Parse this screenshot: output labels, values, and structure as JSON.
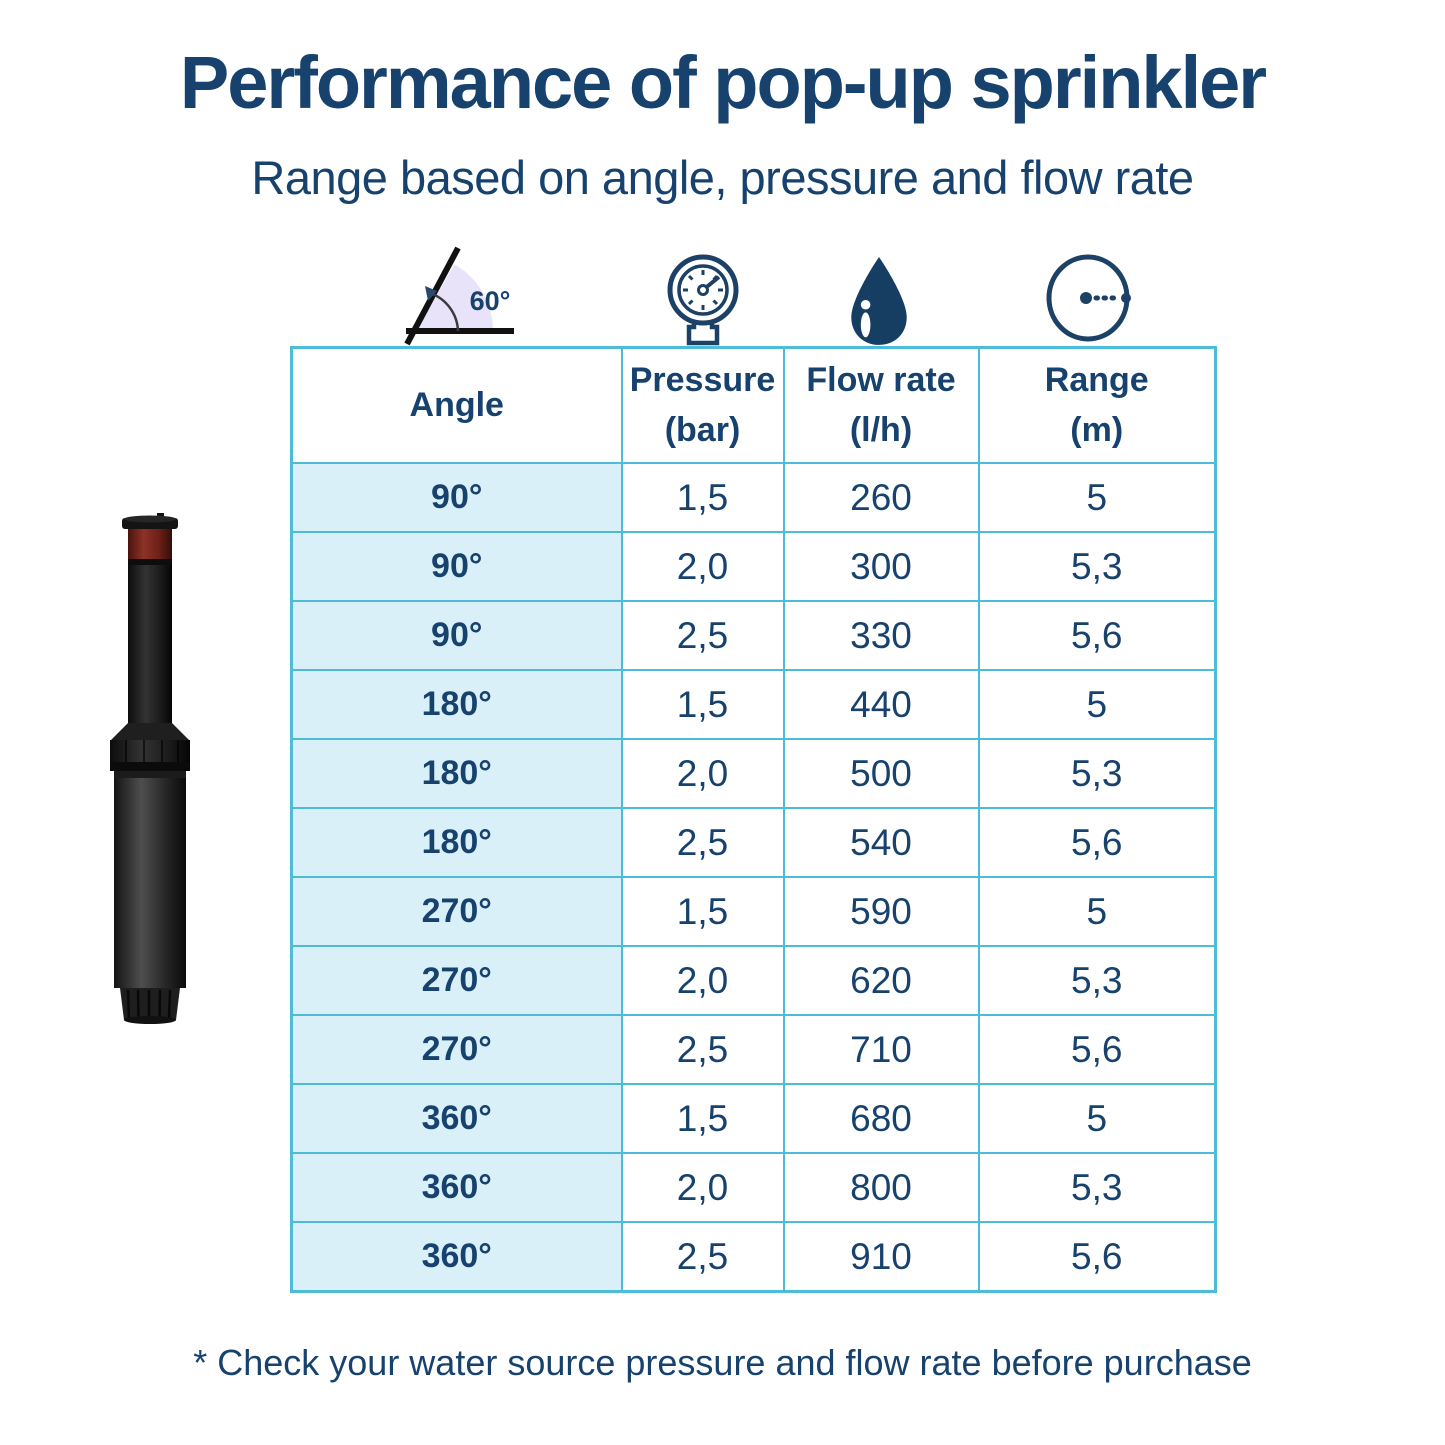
{
  "page": {
    "title": "Performance of pop-up sprinkler",
    "subtitle": "Range based on angle, pressure and flow rate",
    "footnote": "* Check your water source pressure and flow rate before purchase"
  },
  "icons": {
    "angle_label": "60°",
    "angle_icon": "spray angle",
    "gauge_icon": "water pressure gauge",
    "drop_icon": "water flow",
    "range_icon": "spray range radius"
  },
  "table": {
    "headers": [
      {
        "line1": "Angle",
        "line2": ""
      },
      {
        "line1": "Pressure",
        "line2": "(bar)"
      },
      {
        "line1": "Flow rate",
        "line2": "(l/h)"
      },
      {
        "line1": "Range",
        "line2": "(m)"
      }
    ],
    "rows": [
      {
        "angle": "90°",
        "pressure": "1,5",
        "flow": "260",
        "range": "5"
      },
      {
        "angle": "90°",
        "pressure": "2,0",
        "flow": "300",
        "range": "5,3"
      },
      {
        "angle": "90°",
        "pressure": "2,5",
        "flow": "330",
        "range": "5,6"
      },
      {
        "angle": "180°",
        "pressure": "1,5",
        "flow": "440",
        "range": "5"
      },
      {
        "angle": "180°",
        "pressure": "2,0",
        "flow": "500",
        "range": "5,3"
      },
      {
        "angle": "180°",
        "pressure": "2,5",
        "flow": "540",
        "range": "5,6"
      },
      {
        "angle": "270°",
        "pressure": "1,5",
        "flow": "590",
        "range": "5"
      },
      {
        "angle": "270°",
        "pressure": "2,0",
        "flow": "620",
        "range": "5,3"
      },
      {
        "angle": "270°",
        "pressure": "2,5",
        "flow": "710",
        "range": "5,6"
      },
      {
        "angle": "360°",
        "pressure": "1,5",
        "flow": "680",
        "range": "5"
      },
      {
        "angle": "360°",
        "pressure": "2,0",
        "flow": "800",
        "range": "5,3"
      },
      {
        "angle": "360°",
        "pressure": "2,5",
        "flow": "910",
        "range": "5,6"
      }
    ]
  },
  "colors": {
    "navy_text": "#17426e",
    "table_border": "#4cbcd9",
    "angle_column_bg": "#daf0f9",
    "angle_sector": "#e9e3f9",
    "sprinkler_red_band": "#7a2d24"
  },
  "chart_data": {
    "type": "table",
    "title": "Performance of pop-up sprinkler",
    "subtitle": "Range based on angle, pressure and flow rate",
    "columns": [
      "Angle",
      "Pressure (bar)",
      "Flow rate (l/h)",
      "Range (m)"
    ],
    "rows": [
      [
        "90°",
        1.5,
        260,
        5
      ],
      [
        "90°",
        2.0,
        300,
        5.3
      ],
      [
        "90°",
        2.5,
        330,
        5.6
      ],
      [
        "180°",
        1.5,
        440,
        5
      ],
      [
        "180°",
        2.0,
        500,
        5.3
      ],
      [
        "180°",
        2.5,
        540,
        5.6
      ],
      [
        "270°",
        1.5,
        590,
        5
      ],
      [
        "270°",
        2.0,
        620,
        5.3
      ],
      [
        "270°",
        2.5,
        710,
        5.6
      ],
      [
        "360°",
        1.5,
        680,
        5
      ],
      [
        "360°",
        2.0,
        800,
        5.3
      ],
      [
        "360°",
        2.5,
        910,
        5.6
      ]
    ],
    "footnote": "* Check your water source pressure and flow rate before purchase"
  }
}
